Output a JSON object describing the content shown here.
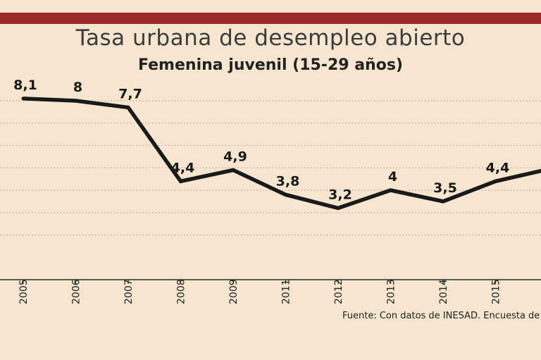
{
  "title": "Tasa urbana de desempleo abierto",
  "subtitle": "Femenina juvenil (15-29 años)",
  "source": "Fuente: Con datos de INESAD. Encuesta de Ho",
  "colors": {
    "background": "#f6e6cf",
    "top_bar": "#9b2a2a",
    "line": "#1a1a1a",
    "grid": "#b9aa95"
  },
  "chart_data": {
    "type": "line",
    "title": "Tasa urbana de desempleo abierto",
    "subtitle": "Femenina juvenil (15-29 años)",
    "categories": [
      "2005",
      "2006",
      "2007",
      "2008",
      "2009",
      "2011",
      "2012",
      "2013",
      "2014",
      "2015"
    ],
    "values": [
      8.1,
      8,
      7.7,
      4.4,
      4.9,
      3.8,
      3.2,
      4,
      3.5,
      4.4
    ],
    "data_labels": [
      "8,1",
      "8",
      "7,7",
      "4,4",
      "4,9",
      "3,8",
      "3,2",
      "4",
      "3,5",
      "4,4"
    ],
    "grid": true,
    "line_color": "#1a1a1a"
  }
}
